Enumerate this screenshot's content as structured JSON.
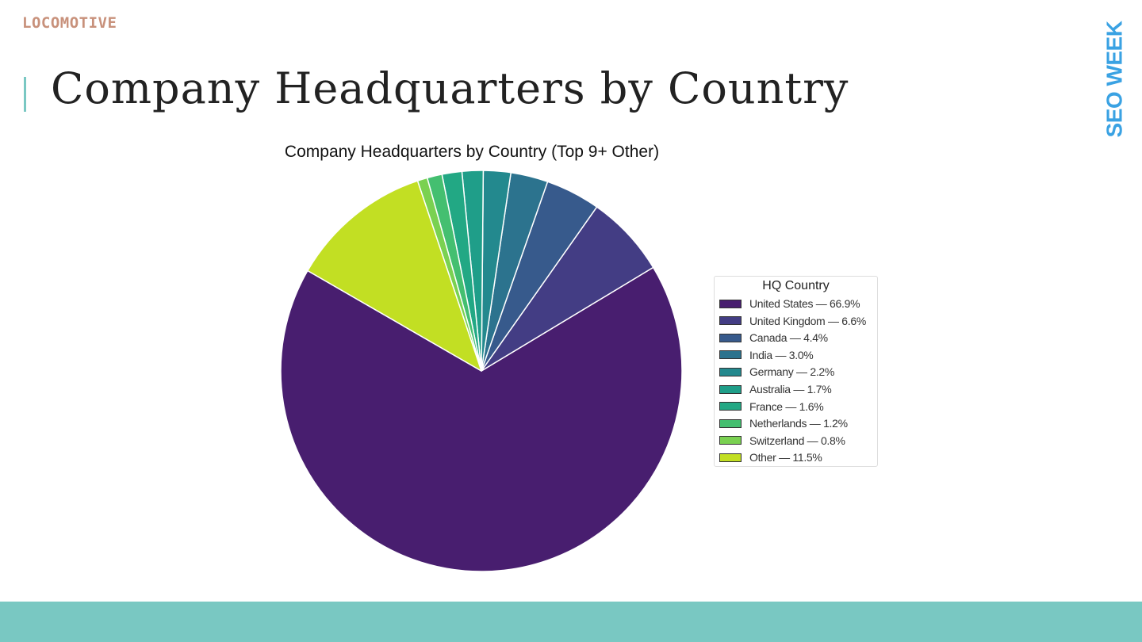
{
  "brand": {
    "logo_text": "LOCOMOTIVE",
    "side_text": "SEO WEEK"
  },
  "page": {
    "title": "Company Headquarters by Country"
  },
  "colors": {
    "accent": "#7ac8c3",
    "footer": "#79c8c2",
    "brand_blue": "#3aa2e3",
    "logo": "#c8917b"
  },
  "chart_data": {
    "type": "pie",
    "title": "Company Headquarters by Country (Top 9+ Other)",
    "legend_title": "HQ Country",
    "legend_position": "right",
    "start_angle_deg": 150,
    "direction": "counterclockwise",
    "slices": [
      {
        "label": "United States",
        "value": 66.9,
        "legend": "United States — 66.9%",
        "color": "#481e6f"
      },
      {
        "label": "United Kingdom",
        "value": 6.6,
        "legend": "United Kingdom — 6.6%",
        "color": "#433d84"
      },
      {
        "label": "Canada",
        "value": 4.4,
        "legend": "Canada — 4.4%",
        "color": "#375a8c"
      },
      {
        "label": "India",
        "value": 3.0,
        "legend": "India — 3.0%",
        "color": "#2c738e"
      },
      {
        "label": "Germany",
        "value": 2.2,
        "legend": "Germany — 2.2%",
        "color": "#23898e"
      },
      {
        "label": "Australia",
        "value": 1.7,
        "legend": "Australia — 1.7%",
        "color": "#1f9e89"
      },
      {
        "label": "France",
        "value": 1.6,
        "legend": "France — 1.6%",
        "color": "#22a884"
      },
      {
        "label": "Netherlands",
        "value": 1.2,
        "legend": "Netherlands — 1.2%",
        "color": "#44bf70"
      },
      {
        "label": "Switzerland",
        "value": 0.8,
        "legend": "Switzerland — 0.8%",
        "color": "#7ad151"
      },
      {
        "label": "Other",
        "value": 11.5,
        "legend": "Other — 11.5%",
        "color": "#c2df23"
      }
    ]
  }
}
